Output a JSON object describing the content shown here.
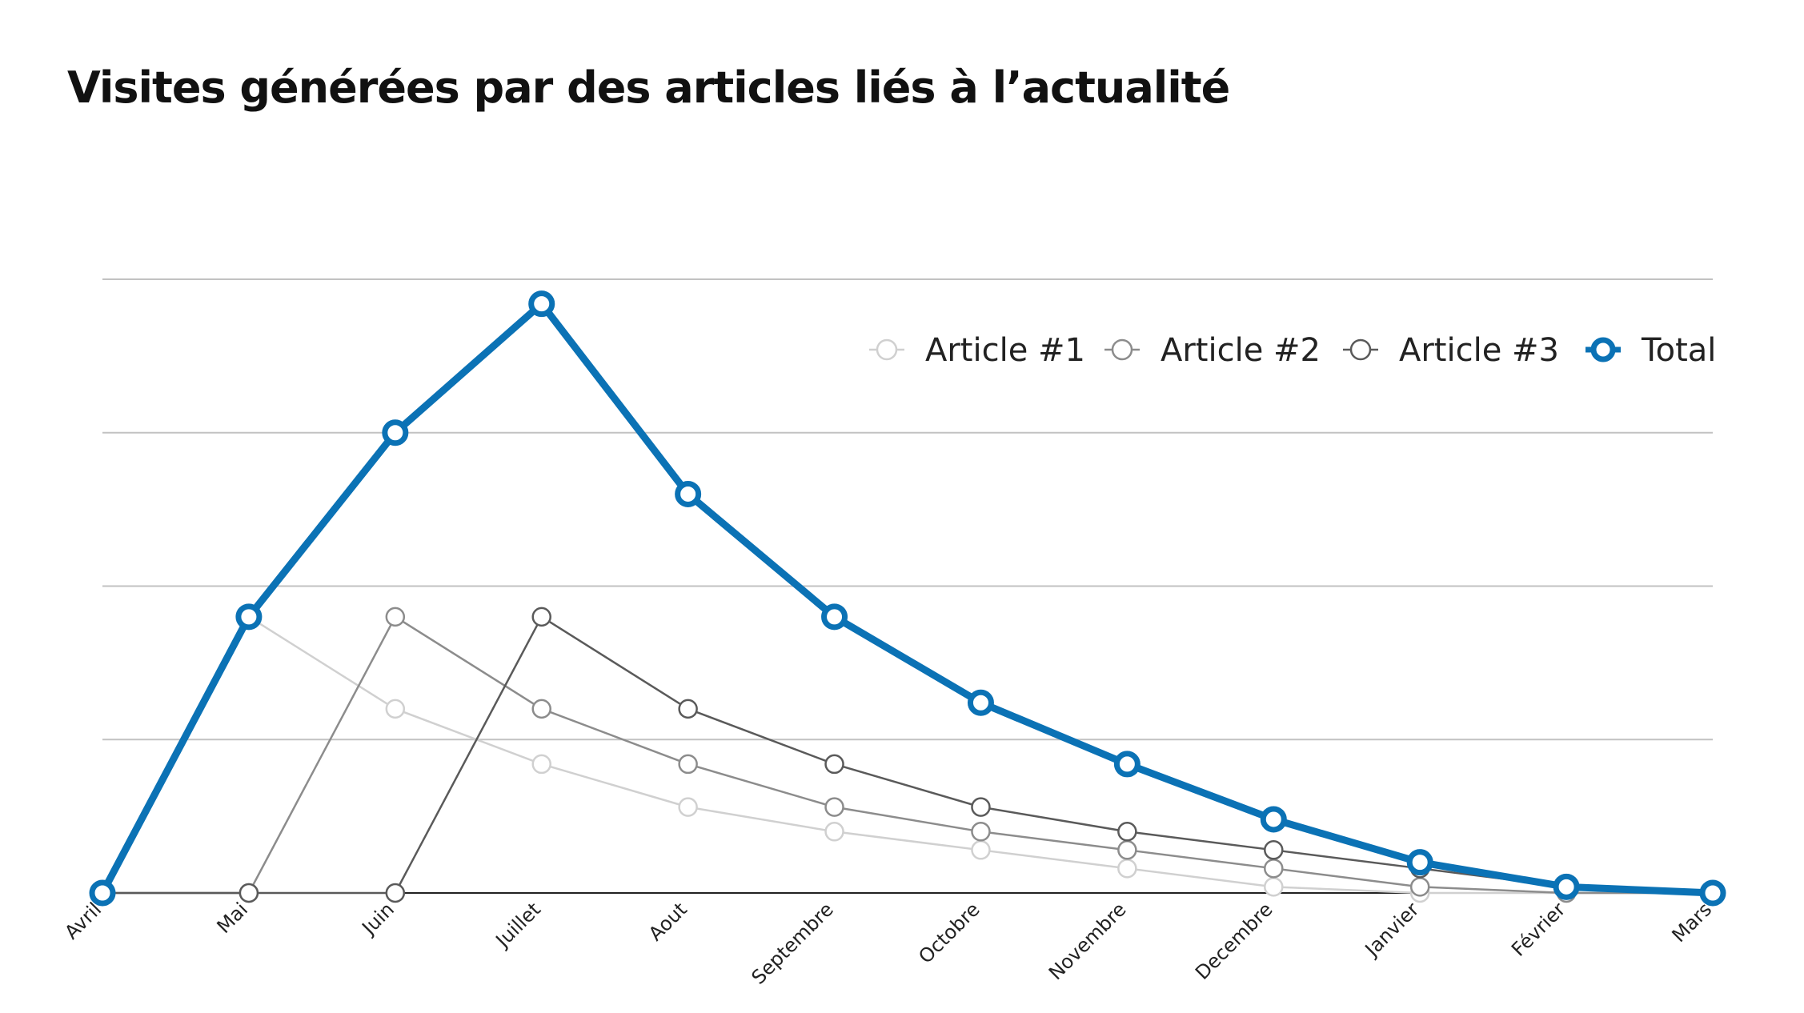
{
  "page": {
    "title": "Visites générées par des articles liés à l’actualité"
  },
  "chart_data": {
    "type": "line",
    "title": "Visites générées par des articles liés à l’actualité",
    "xlabel": "",
    "ylabel": "",
    "categories": [
      "Avril",
      "Mai",
      "Juin",
      "Juillet",
      "Aout",
      "Septembre",
      "Octobre",
      "Novembre",
      "Decembre",
      "Janvier",
      "Février",
      "Mars"
    ],
    "ylim": [
      0,
      100
    ],
    "grid": true,
    "y_tick_labels_shown": false,
    "legend_position": "top-right",
    "series": [
      {
        "name": "Article #1",
        "color": "#d0d0d0",
        "values": [
          0,
          45,
          30,
          21,
          14,
          10,
          7,
          4,
          1,
          0,
          0,
          0
        ]
      },
      {
        "name": "Article #2",
        "color": "#8c8c8c",
        "values": [
          0,
          0,
          45,
          30,
          21,
          14,
          10,
          7,
          4,
          1,
          0,
          0
        ]
      },
      {
        "name": "Article #3",
        "color": "#5a5a5a",
        "values": [
          0,
          0,
          0,
          45,
          30,
          21,
          14,
          10,
          7,
          4,
          1,
          0
        ]
      },
      {
        "name": "Total",
        "color": "#0b72b5",
        "values": [
          0,
          45,
          75,
          96,
          65,
          45,
          31,
          21,
          12,
          5,
          1,
          0
        ]
      }
    ]
  }
}
